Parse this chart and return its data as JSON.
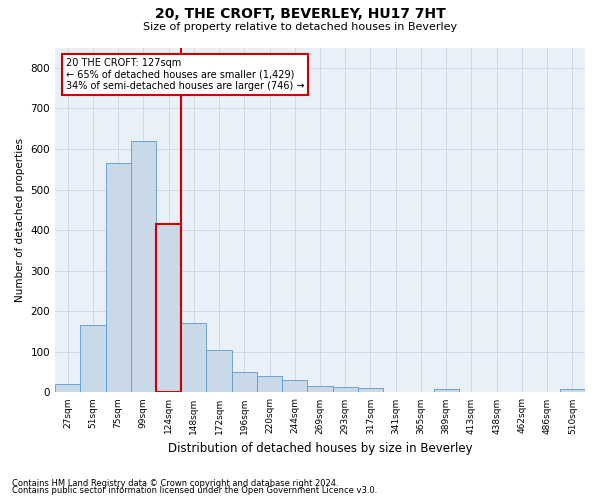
{
  "title": "20, THE CROFT, BEVERLEY, HU17 7HT",
  "subtitle": "Size of property relative to detached houses in Beverley",
  "xlabel": "Distribution of detached houses by size in Beverley",
  "ylabel": "Number of detached properties",
  "categories": [
    "27sqm",
    "51sqm",
    "75sqm",
    "99sqm",
    "124sqm",
    "148sqm",
    "172sqm",
    "196sqm",
    "220sqm",
    "244sqm",
    "269sqm",
    "293sqm",
    "317sqm",
    "341sqm",
    "365sqm",
    "389sqm",
    "413sqm",
    "438sqm",
    "462sqm",
    "486sqm",
    "510sqm"
  ],
  "values": [
    20,
    165,
    565,
    620,
    415,
    170,
    105,
    50,
    40,
    30,
    15,
    13,
    10,
    0,
    0,
    8,
    0,
    0,
    0,
    0,
    8
  ],
  "bar_color": "#c9d9e8",
  "bar_edge_color": "#5b9bd5",
  "highlight_bar_index": 4,
  "highlight_line_color": "#cc0000",
  "annotation_text": "20 THE CROFT: 127sqm\n← 65% of detached houses are smaller (1,429)\n34% of semi-detached houses are larger (746) →",
  "annotation_box_color": "#ffffff",
  "annotation_box_edge": "#cc0000",
  "ylim": [
    0,
    850
  ],
  "yticks": [
    0,
    100,
    200,
    300,
    400,
    500,
    600,
    700,
    800
  ],
  "grid_color": "#d0d8e8",
  "background_color": "#eaf0f8",
  "footer_line1": "Contains HM Land Registry data © Crown copyright and database right 2024.",
  "footer_line2": "Contains public sector information licensed under the Open Government Licence v3.0."
}
